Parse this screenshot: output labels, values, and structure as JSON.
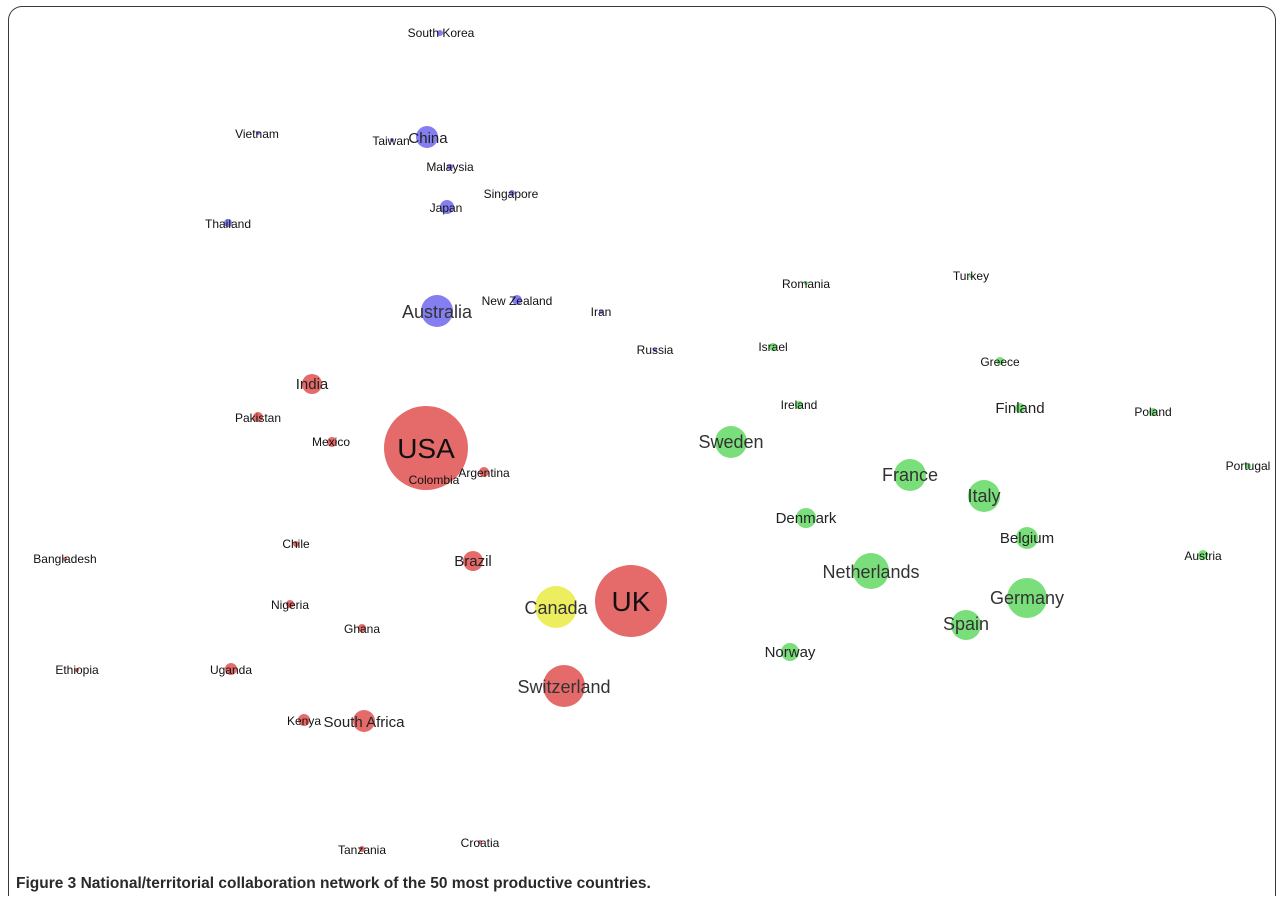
{
  "figure": {
    "number": "Figure 3",
    "caption": "National/territorial collaboration network of the 50 most productive countries."
  },
  "colors": {
    "red": "#e35d5d",
    "blue": "#7a73f0",
    "green": "#6fdc6f",
    "yellow": "#ecec52"
  },
  "nodes": [
    {
      "name": "South Korea",
      "color": "blue",
      "size": 1
    },
    {
      "name": "Vietnam",
      "color": "blue",
      "size": 1
    },
    {
      "name": "Taiwan",
      "color": "blue",
      "size": 1
    },
    {
      "name": "China",
      "color": "blue",
      "size": 3
    },
    {
      "name": "Malaysia",
      "color": "blue",
      "size": 1
    },
    {
      "name": "Singapore",
      "color": "blue",
      "size": 1
    },
    {
      "name": "Japan",
      "color": "blue",
      "size": 2
    },
    {
      "name": "Thailand",
      "color": "blue",
      "size": 1
    },
    {
      "name": "Australia",
      "color": "blue",
      "size": 4
    },
    {
      "name": "New Zealand",
      "color": "blue",
      "size": 1
    },
    {
      "name": "Iran",
      "color": "blue",
      "size": 1
    },
    {
      "name": "Russia",
      "color": "blue",
      "size": 1
    },
    {
      "name": "Romania",
      "color": "green",
      "size": 1
    },
    {
      "name": "Turkey",
      "color": "green",
      "size": 1
    },
    {
      "name": "Israel",
      "color": "green",
      "size": 1
    },
    {
      "name": "Greece",
      "color": "green",
      "size": 1
    },
    {
      "name": "Ireland",
      "color": "green",
      "size": 1
    },
    {
      "name": "Finland",
      "color": "green",
      "size": 1
    },
    {
      "name": "Poland",
      "color": "green",
      "size": 1
    },
    {
      "name": "Sweden",
      "color": "green",
      "size": 4
    },
    {
      "name": "France",
      "color": "green",
      "size": 4
    },
    {
      "name": "Portugal",
      "color": "green",
      "size": 1
    },
    {
      "name": "Italy",
      "color": "green",
      "size": 4
    },
    {
      "name": "Denmark",
      "color": "green",
      "size": 2
    },
    {
      "name": "Belgium",
      "color": "green",
      "size": 2
    },
    {
      "name": "Austria",
      "color": "green",
      "size": 1
    },
    {
      "name": "Netherlands",
      "color": "green",
      "size": 5
    },
    {
      "name": "Germany",
      "color": "green",
      "size": 6
    },
    {
      "name": "Spain",
      "color": "green",
      "size": 4
    },
    {
      "name": "Norway",
      "color": "green",
      "size": 2
    },
    {
      "name": "India",
      "color": "red",
      "size": 2
    },
    {
      "name": "Pakistan",
      "color": "red",
      "size": 1
    },
    {
      "name": "Mexico",
      "color": "red",
      "size": 1
    },
    {
      "name": "USA",
      "color": "red",
      "size": 10
    },
    {
      "name": "Colombia",
      "color": "red",
      "size": 1
    },
    {
      "name": "Argentina",
      "color": "red",
      "size": 1
    },
    {
      "name": "Chile",
      "color": "red",
      "size": 1
    },
    {
      "name": "Brazil",
      "color": "red",
      "size": 2
    },
    {
      "name": "Bangladesh",
      "color": "red",
      "size": 1
    },
    {
      "name": "Nigeria",
      "color": "red",
      "size": 1
    },
    {
      "name": "Ghana",
      "color": "red",
      "size": 1
    },
    {
      "name": "Canada",
      "color": "yellow",
      "size": 6
    },
    {
      "name": "UK",
      "color": "red",
      "size": 9
    },
    {
      "name": "Ethiopia",
      "color": "red",
      "size": 1
    },
    {
      "name": "Uganda",
      "color": "red",
      "size": 1
    },
    {
      "name": "Switzerland",
      "color": "red",
      "size": 5
    },
    {
      "name": "Kenya",
      "color": "red",
      "size": 1
    },
    {
      "name": "South Africa",
      "color": "red",
      "size": 2
    },
    {
      "name": "Tanzania",
      "color": "red",
      "size": 1
    },
    {
      "name": "Croatia",
      "color": "red",
      "size": 1
    }
  ]
}
